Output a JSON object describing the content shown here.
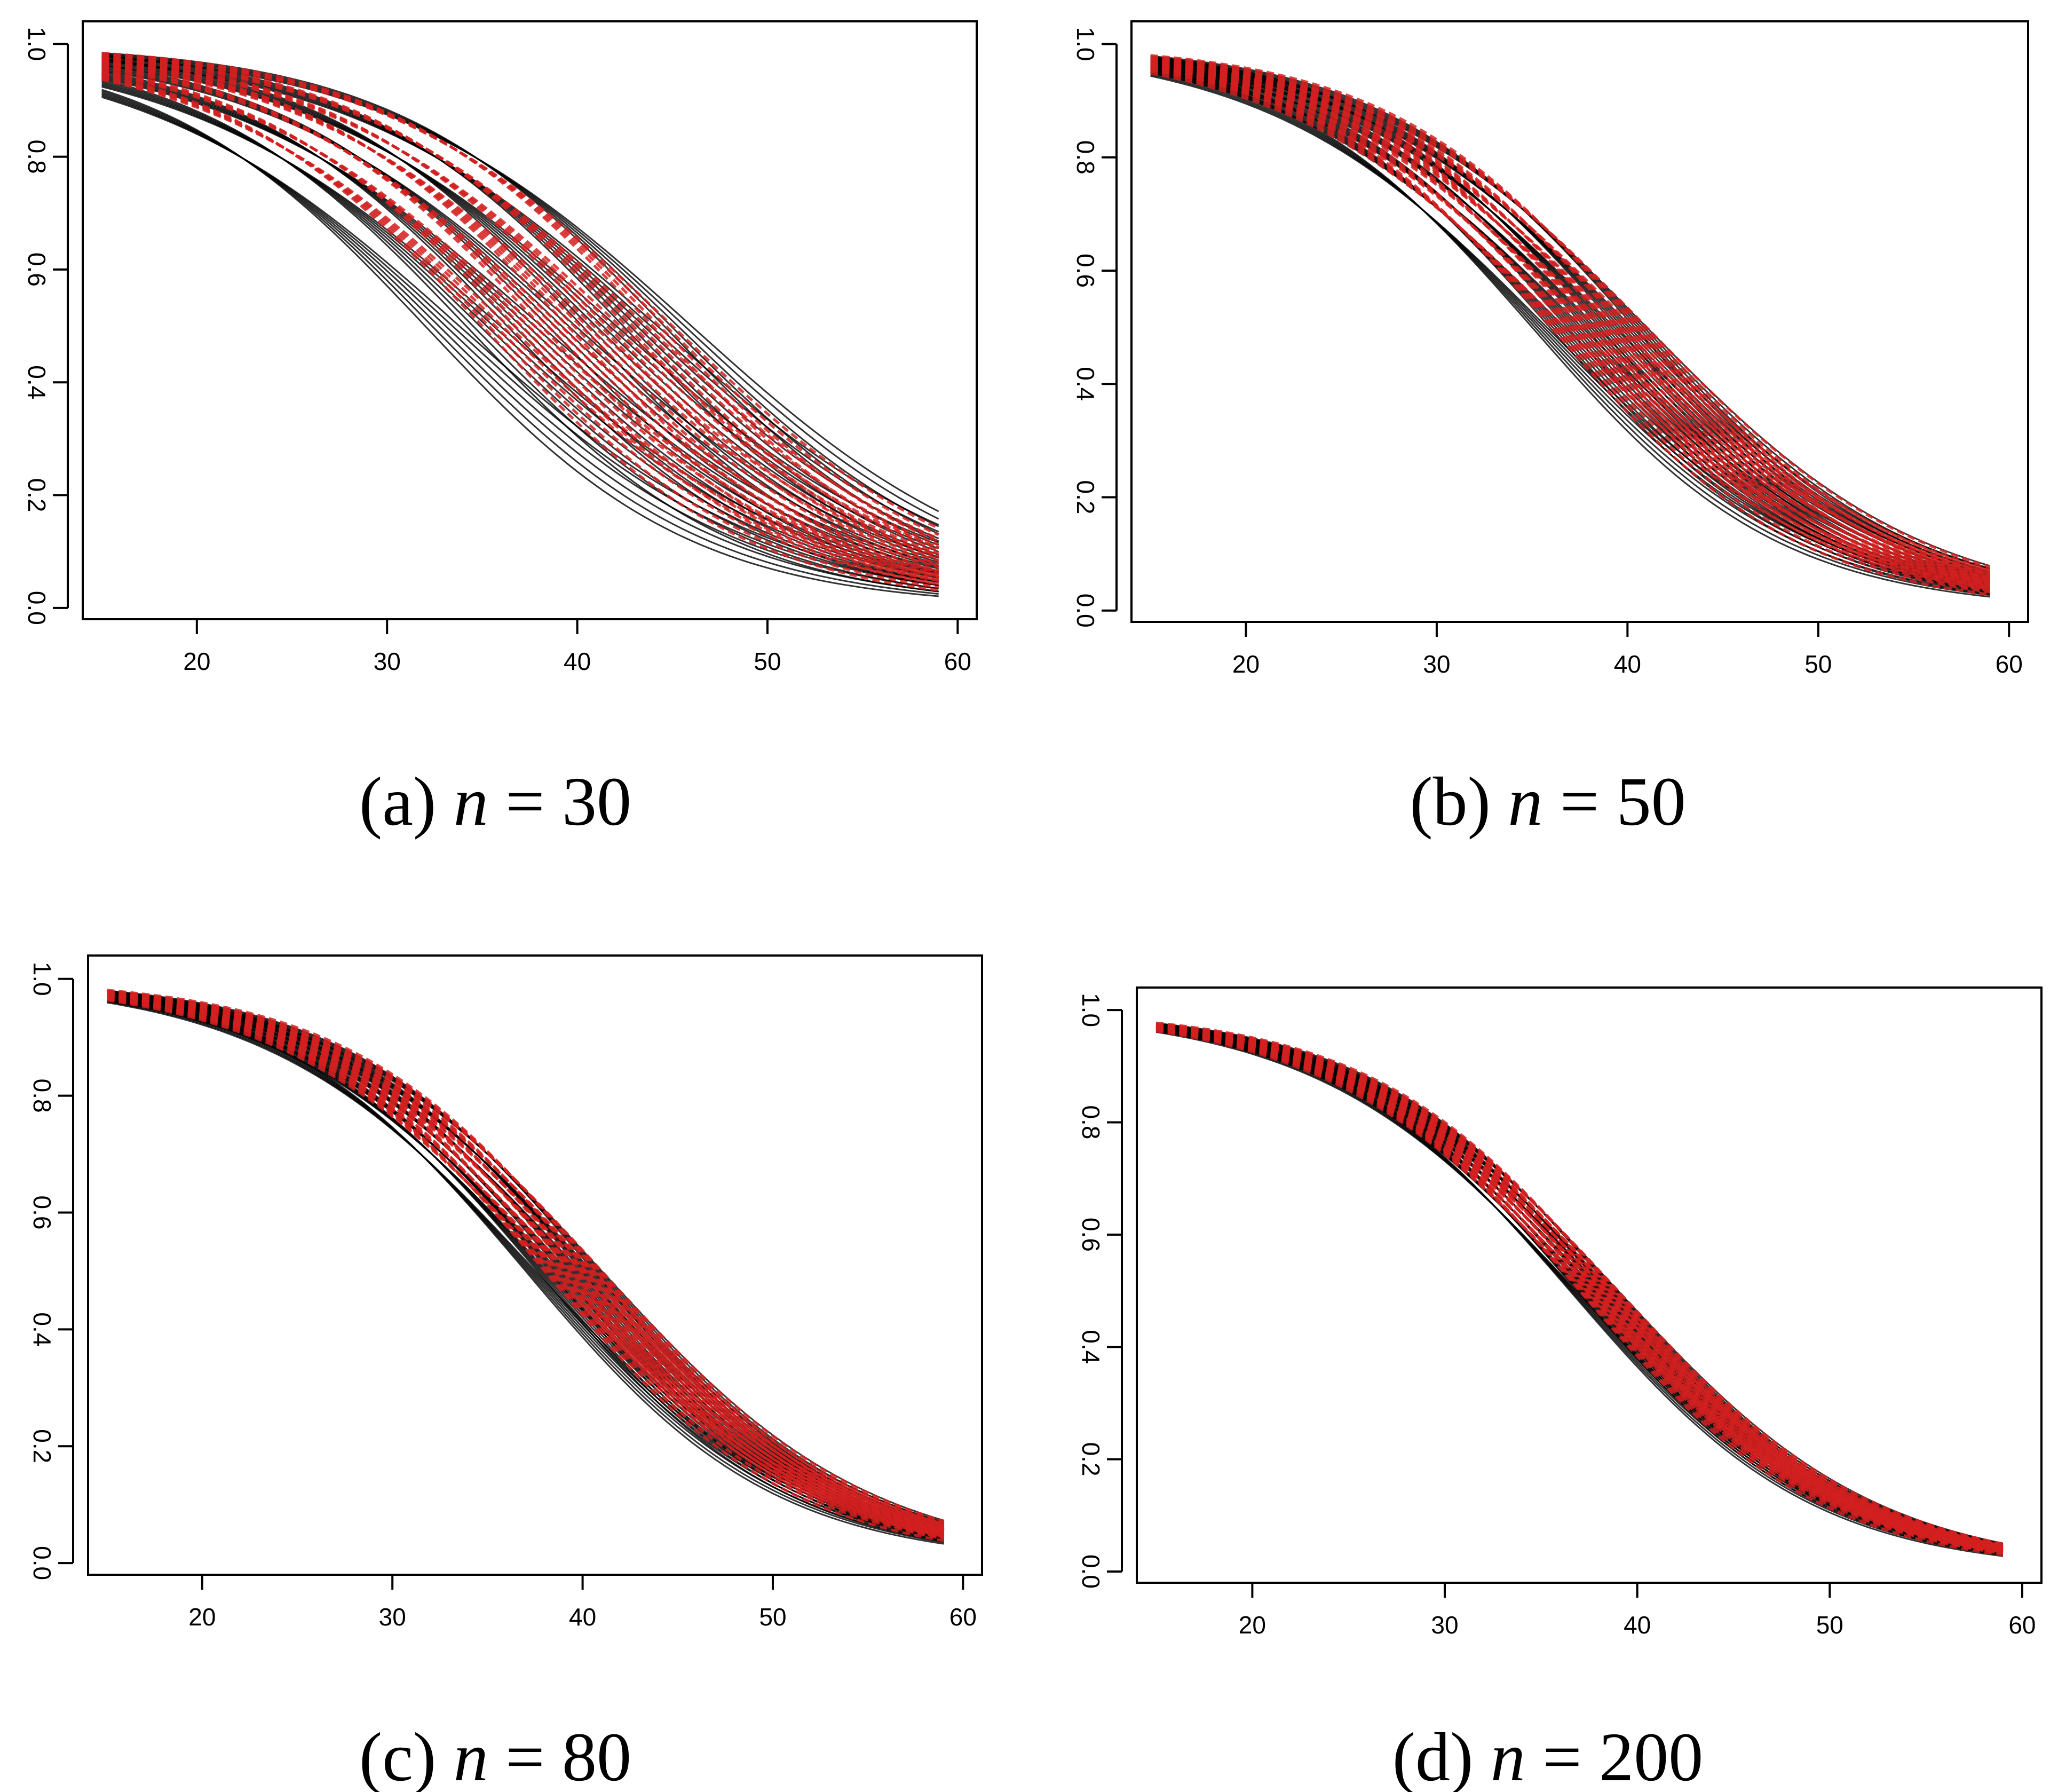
{
  "chart_data": [
    {
      "type": "line",
      "panel": "a",
      "caption_prefix": "(a)",
      "caption_var": "n",
      "caption_eq": "= 30",
      "x_ticks": [
        20,
        30,
        40,
        50,
        60
      ],
      "y_ticks": [
        "0.0",
        "0.2",
        "0.4",
        "0.6",
        "0.8",
        "1.0"
      ],
      "xlim": [
        14,
        61
      ],
      "ylim": [
        -0.02,
        1.04
      ],
      "x_range": [
        15,
        59
      ],
      "series": [
        {
          "style": "solid",
          "color": "#000000",
          "count": 40,
          "center_min": 32,
          "center_max": 46,
          "scale_min": 7,
          "scale_max": 8.5
        },
        {
          "style": "dashed",
          "color": "#d42020",
          "count": 30,
          "center_min": 35,
          "center_max": 45,
          "scale_min": 7,
          "scale_max": 8
        }
      ]
    },
    {
      "type": "line",
      "panel": "b",
      "caption_prefix": "(b)",
      "caption_var": "n",
      "caption_eq": "= 50",
      "x_ticks": [
        20,
        30,
        40,
        50,
        60
      ],
      "y_ticks": [
        "0.0",
        "0.2",
        "0.4",
        "0.6",
        "0.8",
        "1.0"
      ],
      "xlim": [
        14,
        61
      ],
      "ylim": [
        -0.02,
        1.04
      ],
      "x_range": [
        15,
        59
      ],
      "series": [
        {
          "style": "solid",
          "color": "#000000",
          "count": 40,
          "center_min": 35,
          "center_max": 41,
          "scale_min": 6.5,
          "scale_max": 7.5
        },
        {
          "style": "dashed",
          "color": "#d42020",
          "count": 30,
          "center_min": 36,
          "center_max": 41,
          "scale_min": 6.5,
          "scale_max": 7.5
        }
      ]
    },
    {
      "type": "line",
      "panel": "c",
      "caption_prefix": "(c)",
      "caption_var": "n",
      "caption_eq": "= 80",
      "x_ticks": [
        20,
        30,
        40,
        50,
        60
      ],
      "y_ticks": [
        "0.0",
        "0.2",
        "0.4",
        "0.6",
        "0.8",
        "1.0"
      ],
      "xlim": [
        14,
        61
      ],
      "ylim": [
        -0.02,
        1.04
      ],
      "x_range": [
        15,
        59
      ],
      "series": [
        {
          "style": "solid",
          "color": "#000000",
          "count": 40,
          "center_min": 37,
          "center_max": 41,
          "scale_min": 6.5,
          "scale_max": 7.2
        },
        {
          "style": "dashed",
          "color": "#d42020",
          "count": 30,
          "center_min": 38,
          "center_max": 41,
          "scale_min": 6.5,
          "scale_max": 7.2
        }
      ]
    },
    {
      "type": "line",
      "panel": "d",
      "caption_prefix": "(d)",
      "caption_var": "n",
      "caption_eq": "= 200",
      "x_ticks": [
        20,
        30,
        40,
        50,
        60
      ],
      "y_ticks": [
        "0.0",
        "0.2",
        "0.4",
        "0.6",
        "0.8",
        "1.0"
      ],
      "xlim": [
        14,
        61
      ],
      "ylim": [
        -0.02,
        1.04
      ],
      "x_range": [
        15,
        59
      ],
      "series": [
        {
          "style": "solid",
          "color": "#000000",
          "count": 40,
          "center_min": 36.5,
          "center_max": 39,
          "scale_min": 6.3,
          "scale_max": 6.9
        },
        {
          "style": "dashed",
          "color": "#d42020",
          "count": 30,
          "center_min": 37,
          "center_max": 39,
          "scale_min": 6.3,
          "scale_max": 6.9
        }
      ]
    }
  ]
}
